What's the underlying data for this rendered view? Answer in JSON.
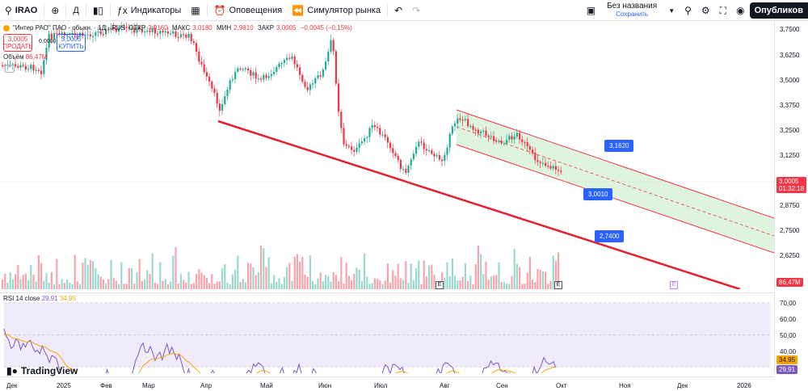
{
  "toolbar": {
    "symbol": "IRAO",
    "interval": "Д",
    "indicators": "Индикаторы",
    "alerts": "Оповещения",
    "replay": "Симулятор рынка",
    "title": "Без названия",
    "saved": "Сохранить",
    "publish": "Опубликов"
  },
  "legend": {
    "name": "\"Интер РАО\" ПАО - обыкн. · 1Д · RUS",
    "o_label": "ОТКР",
    "o": "3,0160",
    "h_label": "МАКС",
    "h": "3,0180",
    "l_label": "МИН",
    "l": "2,9810",
    "c_label": "ЗАКР",
    "c": "3,0005",
    "change": "−0,0045 (−0,15%)"
  },
  "trade": {
    "sell_price": "3,0005",
    "sell_label": "ПРОДАТЬ",
    "spread": "0,0000",
    "buy_price": "3,0005",
    "buy_label": "КУПИТЬ"
  },
  "volume": {
    "label": "Объём",
    "value": "86,47M"
  },
  "rsi": {
    "label": "RSI 14 close",
    "rsi_value": "29,91",
    "ma_value": "34,95"
  },
  "price_axis": [
    "3,7500",
    "3,6250",
    "3,5000",
    "3,3750",
    "3,2500",
    "3,1250",
    "3,0005",
    "2,8750",
    "2,7500",
    "2,6250"
  ],
  "price_badge": {
    "price": "3,0005",
    "timer": "01:32:18"
  },
  "volume_badge": "86,47M",
  "rsi_axis": [
    "70,00",
    "60,00",
    "50,00",
    "40,00",
    "30,00"
  ],
  "rsi_badges": {
    "ma": "34,95",
    "rsi": "29,91"
  },
  "time_axis": [
    "Дек",
    "2025",
    "Фев",
    "Мар",
    "Апр",
    "Май",
    "Июн",
    "Июл",
    "Авг",
    "Сен",
    "Окт",
    "Ноя",
    "Дек",
    "2026"
  ],
  "annotations": {
    "upper": "3,1620",
    "middle": "3,0010",
    "lower": "2,7400"
  },
  "event_marker": "E",
  "brand": "TradingView",
  "colors": {
    "up": "#22ab94",
    "down": "#f23645",
    "channel": "#f23645",
    "rsi": "#7e57c2",
    "rsi_ma": "#f7a600",
    "annotation": "#2962ff"
  }
}
